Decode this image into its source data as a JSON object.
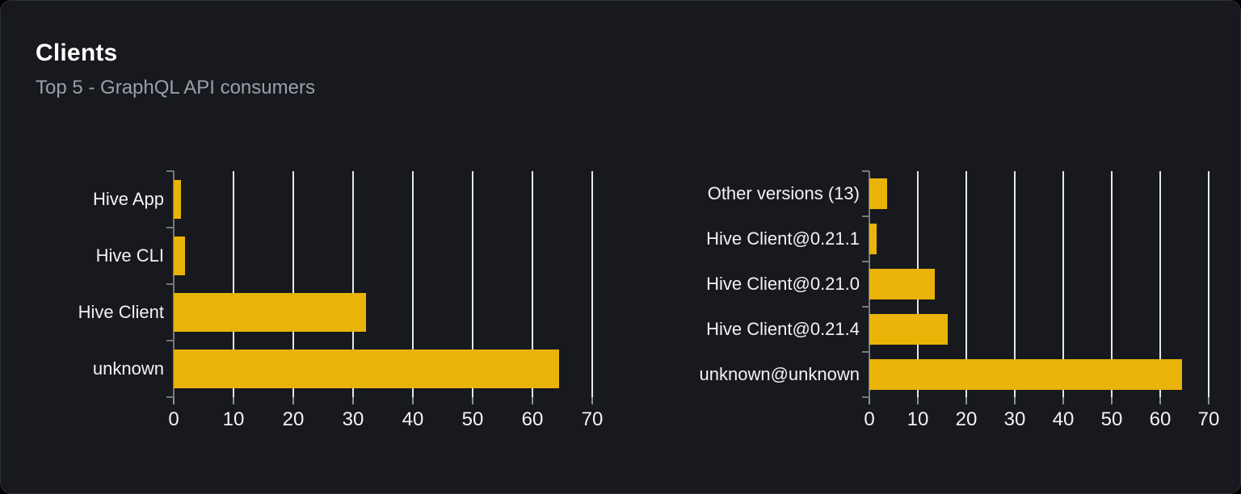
{
  "card": {
    "title": "Clients",
    "subtitle": "Top 5 - GraphQL API consumers"
  },
  "colors": {
    "page_background": "#000000",
    "card_background": "#17191e",
    "card_border": "#2d3036",
    "bar": "#eab308",
    "gridline": "#e3e6ea",
    "axis": "#75787e",
    "title_text": "#ffffff",
    "subtitle_text": "#9aa0a8",
    "label_text": "#f2f3f5"
  },
  "chart_data": [
    {
      "type": "bar",
      "orientation": "horizontal",
      "name": "clients-by-name",
      "categories": [
        "Hive App",
        "Hive CLI",
        "Hive Client",
        "unknown"
      ],
      "values": [
        1.2,
        1.9,
        32.2,
        64.4
      ],
      "xlim": [
        0,
        70
      ],
      "x_ticks": [
        0,
        10,
        20,
        30,
        40,
        50,
        60,
        70
      ],
      "grid": true,
      "legend": false,
      "bar_color": "#eab308"
    },
    {
      "type": "bar",
      "orientation": "horizontal",
      "name": "clients-by-version",
      "categories": [
        "Other versions (13)",
        "Hive Client@0.21.1",
        "Hive Client@0.21.0",
        "Hive Client@0.21.4",
        "unknown@unknown"
      ],
      "values": [
        3.7,
        1.5,
        13.5,
        16.2,
        64.5
      ],
      "xlim": [
        0,
        70
      ],
      "x_ticks": [
        0,
        10,
        20,
        30,
        40,
        50,
        60,
        70
      ],
      "grid": true,
      "legend": false,
      "bar_color": "#eab308"
    }
  ]
}
